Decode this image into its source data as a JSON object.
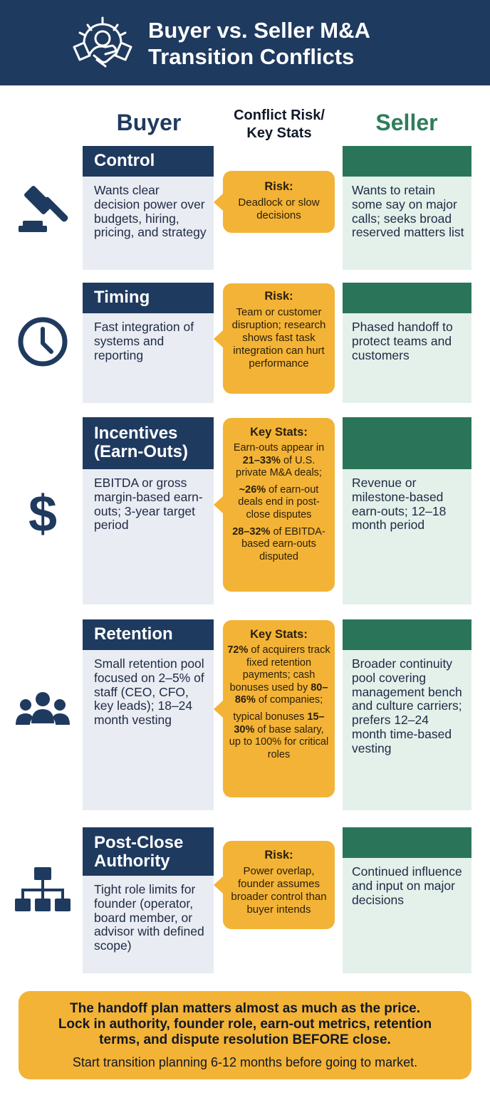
{
  "header": {
    "title_line1": "Buyer vs. Seller M&A",
    "title_line2": "Transition Conflicts",
    "icon": "handshake-gear-icon"
  },
  "columns": {
    "buyer": "Buyer",
    "risk_line1": "Conflict Risk/",
    "risk_line2": "Key Stats",
    "seller": "Seller"
  },
  "colors": {
    "navy": "#1f3a5f",
    "green": "#2a7559",
    "amber": "#f3b336",
    "buyer_bg": "#e9ecf2",
    "seller_bg": "#e3f1ea"
  },
  "rows": [
    {
      "icon": "gavel-icon",
      "title": "Control",
      "buyer": "Wants clear decision power over budgets, hiring, pricing, and strategy",
      "risk_label": "Risk:",
      "risk": "Deadlock or slow decisions",
      "seller": "Wants to retain some say on major calls; seeks broad reserved matters list"
    },
    {
      "icon": "clock-icon",
      "title": "Timing",
      "buyer": "Fast integration of systems and reporting",
      "risk_label": "Risk:",
      "risk": "Team or customer disruption; research shows fast task integration can hurt performance",
      "seller": "Phased handoff to protect teams and customers"
    },
    {
      "icon": "dollar-icon",
      "title_line1": "Incentives",
      "title_line2": "(Earn-Outs)",
      "buyer": "EBITDA or gross margin-based earn-outs; 3-year target period",
      "risk_label": "Key Stats:",
      "stat1_pre": "Earn-outs appear in ",
      "stat1_bold": "21–33%",
      "stat1_post": " of U.S. private M&A deals;",
      "stat2_bold": "~26%",
      "stat2_post": " of earn-out deals end in post-close disputes",
      "stat3_bold": "28–32%",
      "stat3_post": " of EBITDA-based earn-outs disputed",
      "seller": "Revenue or milestone-based earn-outs; 12–18 month period"
    },
    {
      "icon": "people-group-icon",
      "title": "Retention",
      "buyer": "Small retention pool focused on 2–5% of staff (CEO, CFO, key leads); 18–24 month vesting",
      "risk_label": "Key Stats:",
      "stat1_bold": "72%",
      "stat1_mid": " of acquirers track fixed retention payments; cash bonuses used by ",
      "stat1_bold2": "80–86%",
      "stat1_post": " of companies;",
      "stat2_pre": "typical bonuses ",
      "stat2_bold": "15–30%",
      "stat2_post": " of base salary, up to 100% for critical roles",
      "seller": "Broader continuity pool covering management bench and culture carriers; prefers 12–24 month time-based vesting"
    },
    {
      "icon": "org-chart-icon",
      "title_line1": "Post-Close",
      "title_line2": "Authority",
      "buyer": "Tight role limits for founder (operator, board member, or advisor with defined scope)",
      "risk_label": "Risk:",
      "risk": "Power overlap, founder assumes broader control than buyer intends",
      "seller": "Continued influence and input on major decisions"
    }
  ],
  "footer": {
    "line1": "The handoff plan matters almost as much as the price.",
    "line2": "Lock in authority, founder role, earn-out metrics, retention",
    "line3": "terms, and dispute resolution BEFORE close.",
    "line4": "Start transition planning 6-12 months before going to market."
  }
}
